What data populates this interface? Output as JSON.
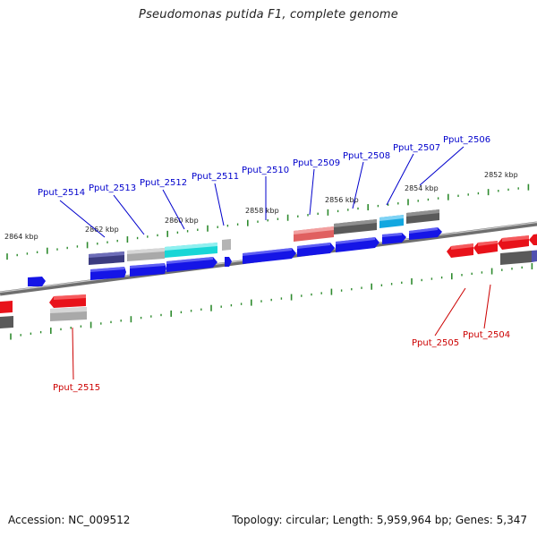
{
  "title": "Pseudomonas putida F1, complete genome",
  "footer": {
    "accession": "Accession: NC_009512",
    "topology": "Topology: circular; Length: 5,959,964 bp; Genes: 5,347"
  },
  "colors": {
    "forward_cds": "#1515e6",
    "reverse_cds": "#e8121a",
    "tick": "#2e8b2e",
    "forward_label": "#0000cc",
    "reverse_label": "#cc0000",
    "backbone": "#7a7a7a"
  },
  "kbp_labels": [
    "2852 kbp",
    "2854 kbp",
    "2856 kbp",
    "2858 kbp",
    "2860 kbp",
    "2862 kbp",
    "2864 kbp"
  ],
  "gene_labels": {
    "forward": [
      "Pput_2506",
      "Pput_2507",
      "Pput_2508",
      "Pput_2509",
      "Pput_2510",
      "Pput_2511",
      "Pput_2512",
      "Pput_2513",
      "Pput_2514"
    ],
    "reverse": [
      "Pput_2515",
      "Pput_2505",
      "Pput_2504"
    ]
  }
}
